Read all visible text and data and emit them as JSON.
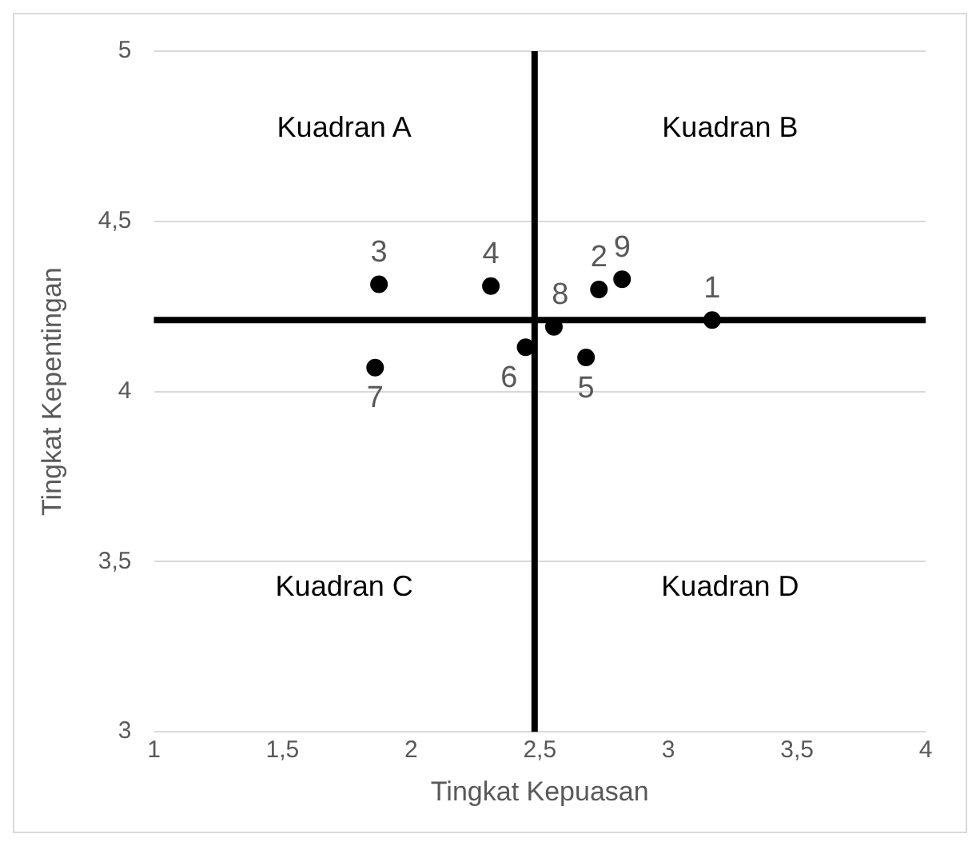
{
  "chart_data": {
    "type": "scatter",
    "xlabel": "Tingkat Kepuasan",
    "ylabel": "Tingkat Kepentingan",
    "x": [
      3.17,
      2.73,
      1.875,
      2.31,
      2.68,
      2.445,
      1.86,
      2.555,
      2.82
    ],
    "values": [
      4.21,
      4.3,
      4.315,
      4.31,
      4.1,
      4.13,
      4.07,
      4.19,
      4.33
    ],
    "color": "#000000",
    "marker": "circle",
    "xlim": [
      1,
      4
    ],
    "xticks": [
      1,
      {
        "value": 1.5,
        "label": "1,5"
      },
      2,
      {
        "value": 2.5,
        "label": "2,5"
      },
      3,
      {
        "value": 3.5,
        "label": "3,5"
      },
      4
    ],
    "ylim": [
      3,
      5
    ],
    "yticks": [
      3,
      {
        "value": 3.5,
        "label": "3,5"
      },
      4,
      {
        "value": 4.5,
        "label": "4,5"
      },
      5
    ],
    "grid": "y",
    "ref_lines": [
      {
        "axis": "y",
        "value": 4.21,
        "color": "#000000"
      },
      {
        "axis": "x",
        "value": 2.48,
        "color": "#000000"
      }
    ],
    "annotations": [
      "Kuadran A",
      "Kuadran B",
      "Kuadran C",
      "Kuadran D",
      {
        "text": "1",
        "x": 3.17,
        "y": 4.21
      },
      {
        "text": "2",
        "x": 2.73,
        "y": 4.3
      },
      {
        "text": "3",
        "x": 1.875,
        "y": 4.315
      },
      {
        "text": "4",
        "x": 2.31,
        "y": 4.31
      },
      {
        "text": "5",
        "x": 2.68,
        "y": 4.1
      },
      {
        "text": "6",
        "x": 2.445,
        "y": 4.13
      },
      {
        "text": "7",
        "x": 1.86,
        "y": 4.07
      },
      {
        "text": "8",
        "x": 2.555,
        "y": 4.19
      },
      {
        "text": "9",
        "x": 2.82,
        "y": 4.33
      }
    ]
  }
}
